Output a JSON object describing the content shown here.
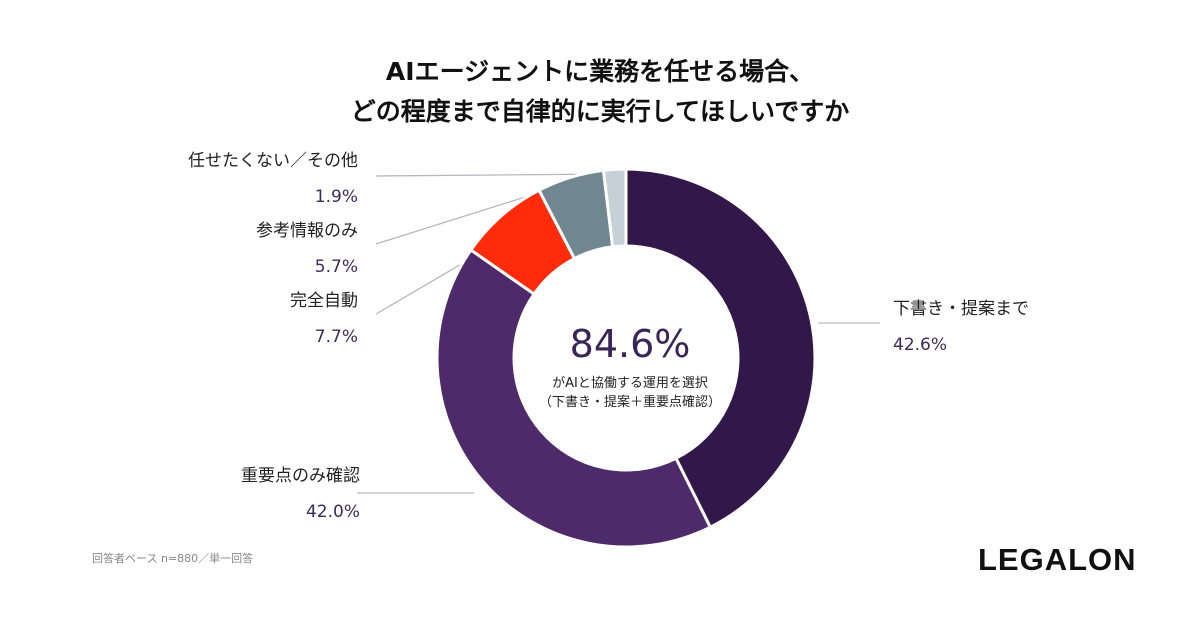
{
  "title": {
    "line1": "AIエージェントに業務を任せる場合、",
    "line2": "どの程度まで自律的に実行してほしいですか"
  },
  "center": {
    "value": "84.6%",
    "line1": "がAIと協働する運用を選択",
    "line2": "（下書き・提案＋重要点確認）"
  },
  "footnote": "回答者ベース n=880／単一回答",
  "logo": "LEGALON",
  "chart_data": {
    "type": "pie",
    "donut": true,
    "categories": [
      "下書き・提案まで",
      "重要点のみ確認",
      "完全自動",
      "参考情報のみ",
      "任せたくない／その他"
    ],
    "values": [
      42.6,
      42.0,
      7.7,
      5.7,
      1.9
    ],
    "value_labels": [
      "42.6%",
      "42.0%",
      "7.7%",
      "5.7%",
      "1.9%"
    ],
    "colors": [
      "#32174a",
      "#4e2a6b",
      "#ff2b0a",
      "#708792",
      "#c6d0d8"
    ],
    "start": "top, clockwise"
  }
}
